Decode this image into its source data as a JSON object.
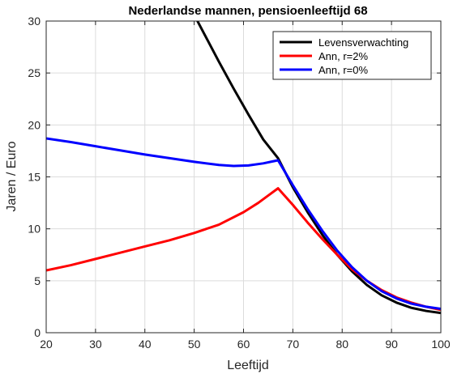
{
  "chart_data": {
    "type": "line",
    "title": "Nederlandse mannen, pensioenleeftijd 68",
    "xlabel": "Leeftijd",
    "ylabel": "Jaren / Euro",
    "xlim": [
      20,
      100
    ],
    "ylim": [
      0,
      30
    ],
    "xticks": [
      20,
      30,
      40,
      50,
      60,
      70,
      80,
      90,
      100
    ],
    "yticks": [
      0,
      5,
      10,
      15,
      20,
      25,
      30
    ],
    "grid": true,
    "legend_position": "top-right",
    "series": [
      {
        "name": "Levensverwachting",
        "color": "#000000",
        "x": [
          49,
          52,
          55,
          58,
          61,
          64,
          67,
          70,
          73,
          76,
          79,
          82,
          85,
          88,
          91,
          94,
          97,
          100
        ],
        "y": [
          31.5,
          28.8,
          26.1,
          23.5,
          21.0,
          18.6,
          16.8,
          14.0,
          11.6,
          9.4,
          7.5,
          5.9,
          4.6,
          3.6,
          2.9,
          2.4,
          2.1,
          1.9
        ]
      },
      {
        "name": "Ann, r=2%",
        "color": "#ff0000",
        "x": [
          20,
          25,
          30,
          35,
          40,
          45,
          50,
          55,
          60,
          63,
          65,
          67,
          70,
          73,
          76,
          79,
          82,
          85,
          88,
          91,
          94,
          97,
          100
        ],
        "y": [
          6.0,
          6.5,
          7.1,
          7.7,
          8.3,
          8.9,
          9.6,
          10.4,
          11.6,
          12.5,
          13.2,
          13.9,
          12.3,
          10.6,
          9.0,
          7.5,
          6.1,
          5.0,
          4.1,
          3.4,
          2.9,
          2.5,
          2.2
        ]
      },
      {
        "name": "Ann, r=0%",
        "color": "#0000ff",
        "x": [
          20,
          25,
          30,
          35,
          40,
          45,
          50,
          55,
          58,
          61,
          64,
          66,
          67,
          70,
          73,
          76,
          79,
          82,
          85,
          88,
          91,
          94,
          97,
          100
        ],
        "y": [
          18.7,
          18.35,
          17.95,
          17.55,
          17.15,
          16.8,
          16.45,
          16.15,
          16.05,
          16.1,
          16.3,
          16.5,
          16.6,
          14.2,
          11.9,
          9.8,
          7.9,
          6.3,
          5.0,
          4.0,
          3.3,
          2.8,
          2.5,
          2.3
        ]
      }
    ]
  }
}
